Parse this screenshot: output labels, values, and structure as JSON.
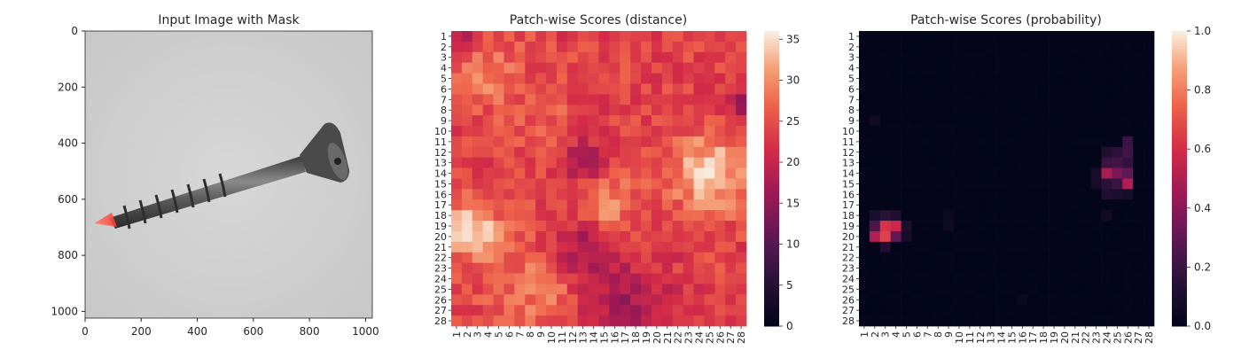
{
  "chart_data": [
    {
      "type": "image",
      "title": "Input Image with Mask",
      "xlim": [
        0,
        1024
      ],
      "ylim": [
        1024,
        0
      ],
      "xticks": [
        "0",
        "200",
        "400",
        "600",
        "800",
        "1000"
      ],
      "yticks": [
        "0",
        "200",
        "400",
        "600",
        "800",
        "1000"
      ],
      "xtick_values": [
        0,
        200,
        400,
        600,
        800,
        1000
      ],
      "ytick_values": [
        0,
        200,
        400,
        600,
        800,
        1000
      ],
      "content": "screw",
      "mask_color": "#ff5a4a"
    },
    {
      "type": "heatmap",
      "title": "Patch-wise Scores (distance)",
      "rows": 28,
      "cols": 28,
      "row_labels": [
        "1",
        "2",
        "3",
        "4",
        "5",
        "6",
        "7",
        "8",
        "9",
        "10",
        "11",
        "12",
        "13",
        "14",
        "15",
        "16",
        "17",
        "18",
        "19",
        "20",
        "21",
        "22",
        "23",
        "24",
        "25",
        "26",
        "27",
        "28"
      ],
      "col_labels": [
        "1",
        "2",
        "3",
        "4",
        "5",
        "6",
        "7",
        "8",
        "9",
        "10",
        "11",
        "12",
        "13",
        "14",
        "15",
        "16",
        "17",
        "18",
        "19",
        "20",
        "21",
        "22",
        "23",
        "24",
        "25",
        "26",
        "27",
        "28"
      ],
      "colorbar_ticks": [
        "0",
        "5",
        "10",
        "15",
        "20",
        "25",
        "30",
        "35"
      ],
      "colorbar_values": [
        0,
        5,
        10,
        15,
        20,
        25,
        30,
        35
      ],
      "vmin": 0,
      "vmax": 36,
      "base_value": 24,
      "hotspots": [
        {
          "row": 19.5,
          "col": 2.5,
          "peak": 36,
          "radius": 1.8
        },
        {
          "row": 14,
          "col": 25,
          "peak": 34,
          "radius": 2.6
        },
        {
          "row": 17,
          "col": 15,
          "peak": 31,
          "radius": 2.0
        },
        {
          "row": 4.5,
          "col": 4,
          "peak": 29,
          "radius": 2.5
        },
        {
          "row": 25,
          "col": 9,
          "peak": 29,
          "radius": 3.0
        },
        {
          "row": 10,
          "col": 10,
          "peak": 27,
          "radius": 2.0
        }
      ],
      "lowspots": [
        {
          "row": 1,
          "col": 1,
          "low": 18,
          "radius": 1.5
        },
        {
          "row": 27,
          "col": 17,
          "low": 17,
          "radius": 3.5
        },
        {
          "row": 13,
          "col": 13,
          "low": 18,
          "radius": 2.0
        },
        {
          "row": 21,
          "col": 13,
          "low": 17,
          "radius": 2.0
        },
        {
          "row": 7.5,
          "col": 28,
          "low": 16,
          "radius": 1.0
        }
      ]
    },
    {
      "type": "heatmap",
      "title": "Patch-wise Scores (probability)",
      "rows": 28,
      "cols": 28,
      "row_labels": [
        "1",
        "2",
        "3",
        "4",
        "5",
        "6",
        "7",
        "8",
        "9",
        "10",
        "11",
        "12",
        "13",
        "14",
        "15",
        "16",
        "17",
        "18",
        "19",
        "20",
        "21",
        "22",
        "23",
        "24",
        "25",
        "26",
        "27",
        "28"
      ],
      "col_labels": [
        "1",
        "2",
        "3",
        "4",
        "5",
        "6",
        "7",
        "8",
        "9",
        "10",
        "11",
        "12",
        "13",
        "14",
        "15",
        "16",
        "17",
        "18",
        "19",
        "20",
        "21",
        "22",
        "23",
        "24",
        "25",
        "26",
        "27",
        "28"
      ],
      "colorbar_ticks": [
        "0.0",
        "0.2",
        "0.4",
        "0.6",
        "0.8",
        "1.0"
      ],
      "colorbar_values": [
        0,
        0.2,
        0.4,
        0.6,
        0.8,
        1.0
      ],
      "vmin": 0,
      "vmax": 1,
      "base_value": 0.01,
      "cells": [
        {
          "row": 19,
          "col": 3,
          "value": 0.62
        },
        {
          "row": 19,
          "col": 4,
          "value": 0.58
        },
        {
          "row": 20,
          "col": 3,
          "value": 0.66
        },
        {
          "row": 20,
          "col": 2,
          "value": 0.5
        },
        {
          "row": 19,
          "col": 2,
          "value": 0.25
        },
        {
          "row": 18,
          "col": 3,
          "value": 0.15
        },
        {
          "row": 18,
          "col": 4,
          "value": 0.12
        },
        {
          "row": 21,
          "col": 3,
          "value": 0.12
        },
        {
          "row": 20,
          "col": 4,
          "value": 0.3
        },
        {
          "row": 18,
          "col": 2,
          "value": 0.1
        },
        {
          "row": 19,
          "col": 5,
          "value": 0.1
        },
        {
          "row": 20,
          "col": 5,
          "value": 0.08
        },
        {
          "row": 14,
          "col": 24,
          "value": 0.48
        },
        {
          "row": 14,
          "col": 25,
          "value": 0.36
        },
        {
          "row": 14,
          "col": 26,
          "value": 0.3
        },
        {
          "row": 15,
          "col": 26,
          "value": 0.5
        },
        {
          "row": 15,
          "col": 25,
          "value": 0.2
        },
        {
          "row": 15,
          "col": 24,
          "value": 0.16
        },
        {
          "row": 13,
          "col": 24,
          "value": 0.2
        },
        {
          "row": 13,
          "col": 25,
          "value": 0.22
        },
        {
          "row": 13,
          "col": 26,
          "value": 0.18
        },
        {
          "row": 12,
          "col": 25,
          "value": 0.16
        },
        {
          "row": 12,
          "col": 26,
          "value": 0.22
        },
        {
          "row": 11,
          "col": 26,
          "value": 0.2
        },
        {
          "row": 12,
          "col": 24,
          "value": 0.12
        },
        {
          "row": 16,
          "col": 24,
          "value": 0.12
        },
        {
          "row": 16,
          "col": 25,
          "value": 0.1
        },
        {
          "row": 16,
          "col": 26,
          "value": 0.08
        },
        {
          "row": 14,
          "col": 23,
          "value": 0.08
        },
        {
          "row": 15,
          "col": 23,
          "value": 0.08
        },
        {
          "row": 18,
          "col": 24,
          "value": 0.06
        },
        {
          "row": 9,
          "col": 2,
          "value": 0.05
        },
        {
          "row": 19,
          "col": 9,
          "value": 0.05
        },
        {
          "row": 18,
          "col": 9,
          "value": 0.04
        },
        {
          "row": 26,
          "col": 16,
          "value": 0.04
        }
      ]
    }
  ]
}
